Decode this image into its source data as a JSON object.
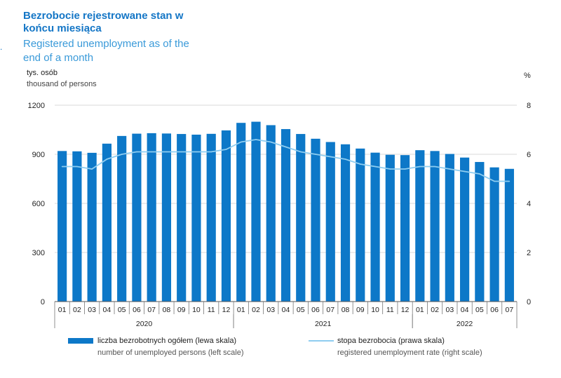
{
  "title_pl": "Bezrobocie rejestrowane stan w końcu miesiąca",
  "title_en": "Registered unemployment as of the end of a month",
  "unit_left_pl": "tys. osób",
  "unit_left_en": "thousand of persons",
  "unit_right": "%",
  "legend": {
    "bars_pl": "liczba bezrobotnych ogółem (lewa skala)",
    "bars_en": "number of unemployed persons (left scale)",
    "line_pl": "stopa bezrobocia (prawa skala)",
    "line_en": "registered unemployment rate (right scale)"
  },
  "colors": {
    "bars": "#0d78c8",
    "line": "#8fcdf0",
    "title": "#1476c6"
  },
  "chart_data": {
    "type": "bar",
    "categories": [
      "01",
      "02",
      "03",
      "04",
      "05",
      "06",
      "07",
      "08",
      "09",
      "10",
      "11",
      "12",
      "01",
      "02",
      "03",
      "04",
      "05",
      "06",
      "07",
      "08",
      "09",
      "10",
      "11",
      "12",
      "01",
      "02",
      "03",
      "04",
      "05",
      "06",
      "07"
    ],
    "years": [
      {
        "label": "2020",
        "start": 0,
        "end": 11
      },
      {
        "label": "2021",
        "start": 12,
        "end": 23
      },
      {
        "label": "2022",
        "start": 24,
        "end": 30
      }
    ],
    "series": [
      {
        "name": "liczba bezrobotnych ogółem (lewa skala)",
        "type": "bar",
        "axis": "left",
        "values": [
          920,
          918,
          909,
          965,
          1012,
          1026,
          1029,
          1027,
          1024,
          1020,
          1025,
          1046,
          1092,
          1099,
          1078,
          1054,
          1024,
          995,
          975,
          961,
          935,
          910,
          897,
          895,
          925,
          920,
          902,
          880,
          853,
          820,
          811
        ]
      },
      {
        "name": "stopa bezrobocia (prawa skala)",
        "type": "line",
        "axis": "right",
        "values": [
          5.5,
          5.5,
          5.4,
          5.8,
          6.0,
          6.1,
          6.1,
          6.1,
          6.1,
          6.1,
          6.1,
          6.2,
          6.5,
          6.6,
          6.5,
          6.3,
          6.1,
          6.0,
          5.9,
          5.8,
          5.6,
          5.5,
          5.4,
          5.4,
          5.5,
          5.5,
          5.4,
          5.3,
          5.2,
          4.9,
          4.9
        ]
      }
    ],
    "ylim_left": [
      0,
      1200
    ],
    "yticks_left": [
      0,
      300,
      600,
      900,
      1200
    ],
    "ylim_right": [
      0,
      8
    ],
    "yticks_right": [
      0,
      2,
      4,
      6,
      8
    ],
    "grid": true
  }
}
